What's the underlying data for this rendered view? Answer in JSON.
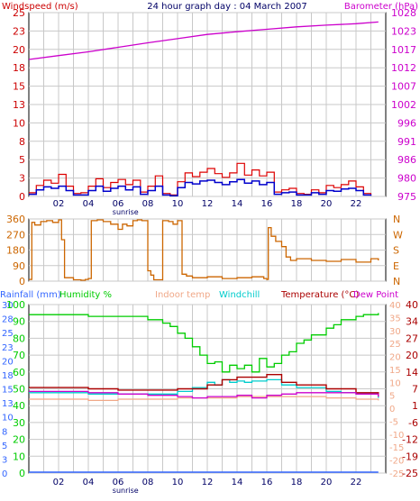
{
  "colors": {
    "wind_avg": "#0000cc",
    "wind_gust": "#dd0000",
    "barometer": "#cc00cc",
    "direction": "#cc6600",
    "rainfall": "#3366ff",
    "humidity": "#00cc00",
    "indoor_temp": "#f0a888",
    "windchill": "#00cccc",
    "temperature": "#aa0000",
    "dew_point": "#cc00cc",
    "grid": "#c8c8c8"
  },
  "chart_data": [
    {
      "type": "line",
      "title": "24 hour graph day : 04 March 2007",
      "left_axis_label": "Windspeed (m/s)",
      "right_axis_label": "Barometer (hPa)",
      "left_ticks": [
        "0",
        "3",
        "5",
        "8",
        "10",
        "13",
        "15",
        "18",
        "20",
        "23",
        "25"
      ],
      "right_ticks": [
        "975",
        "980",
        "986",
        "991",
        "996",
        "1002",
        "1007",
        "1012",
        "1017",
        "1023",
        "1028"
      ],
      "ylim_left": [
        0,
        25
      ],
      "ylim_right": [
        975,
        1028
      ],
      "x_ticks": [
        "02",
        "04",
        "06",
        "08",
        "10",
        "12",
        "14",
        "16",
        "18",
        "20",
        "22"
      ],
      "x_annotation": "sunrise",
      "series": [
        {
          "name": "Barometer",
          "axis": "right",
          "x": [
            0,
            2,
            4,
            6,
            8,
            10,
            12,
            14,
            16,
            18,
            20,
            22,
            23.5
          ],
          "y": [
            1014.5,
            1015.6,
            1016.7,
            1018,
            1019.3,
            1020.5,
            1021.7,
            1022.5,
            1023.2,
            1023.9,
            1024.4,
            1024.8,
            1025.3
          ]
        },
        {
          "name": "Windspeed gust",
          "axis": "left",
          "x": [
            0,
            0.5,
            1,
            1.5,
            2,
            2.5,
            3,
            3.5,
            4,
            4.5,
            5,
            5.5,
            6,
            6.5,
            7,
            7.5,
            8,
            8.5,
            9,
            9.5,
            10,
            10.5,
            11,
            11.5,
            12,
            12.5,
            13,
            13.5,
            14,
            14.5,
            15,
            15.5,
            16,
            16.5,
            17,
            17.5,
            18,
            18.5,
            19,
            19.5,
            20,
            20.5,
            21,
            21.5,
            22,
            22.5,
            23
          ],
          "y": [
            0.5,
            1.5,
            2.2,
            1.8,
            3,
            1.4,
            0.4,
            0.5,
            1.4,
            2.4,
            1.2,
            1.9,
            2.3,
            1.6,
            2.2,
            0.6,
            1.4,
            2.8,
            0.4,
            0.2,
            2,
            3.2,
            2.7,
            3.3,
            3.8,
            3.1,
            2.6,
            3.2,
            4.5,
            2.9,
            3.6,
            2.8,
            3.3,
            0.6,
            0.9,
            1.1,
            0.4,
            0.3,
            0.9,
            0.5,
            1.5,
            1.2,
            1.6,
            2.1,
            1.3,
            0.4,
            0.3
          ]
        },
        {
          "name": "Windspeed average",
          "axis": "left",
          "x": [
            0,
            0.5,
            1,
            1.5,
            2,
            2.5,
            3,
            3.5,
            4,
            4.5,
            5,
            5.5,
            6,
            6.5,
            7,
            7.5,
            8,
            8.5,
            9,
            9.5,
            10,
            10.5,
            11,
            11.5,
            12,
            12.5,
            13,
            13.5,
            14,
            14.5,
            15,
            15.5,
            16,
            16.5,
            17,
            17.5,
            18,
            18.5,
            19,
            19.5,
            20,
            20.5,
            21,
            21.5,
            22,
            22.5,
            23
          ],
          "y": [
            0.3,
            0.9,
            1.3,
            1.1,
            1.4,
            0.8,
            0.2,
            0.2,
            0.8,
            1.4,
            0.7,
            1.1,
            1.4,
            0.9,
            1.3,
            0.3,
            0.8,
            1.4,
            0.2,
            0.1,
            1.2,
            1.9,
            1.7,
            2.1,
            2.2,
            1.9,
            1.6,
            2,
            2.3,
            1.8,
            2.1,
            1.6,
            1.9,
            0.3,
            0.5,
            0.6,
            0.2,
            0.2,
            0.5,
            0.3,
            0.8,
            0.7,
            1,
            1.1,
            0.8,
            0.2,
            0.1
          ]
        }
      ]
    },
    {
      "type": "line",
      "title": "",
      "left_ticks": [
        "0",
        "90",
        "180",
        "270",
        "360"
      ],
      "right_ticks": [
        "N",
        "E",
        "S",
        "W",
        "N"
      ],
      "ylim_left": [
        0,
        360
      ],
      "series": [
        {
          "name": "Wind direction",
          "x": [
            0,
            0.2,
            0.4,
            0.8,
            1.2,
            1.6,
            2,
            2.2,
            2.4,
            3,
            3.5,
            3.8,
            4,
            4.2,
            4.6,
            5,
            5.5,
            6,
            6.3,
            6.6,
            7,
            7.3,
            7.6,
            8,
            8.2,
            8.4,
            9,
            9.4,
            9.7,
            10,
            10.3,
            10.6,
            11,
            12,
            13,
            14,
            15,
            15.8,
            16,
            16.1,
            16.3,
            16.6,
            17,
            17.3,
            17.6,
            18,
            19,
            20,
            21,
            22,
            23,
            23.5
          ],
          "y": [
            10,
            340,
            325,
            345,
            350,
            340,
            355,
            240,
            20,
            8,
            5,
            10,
            15,
            350,
            355,
            345,
            330,
            300,
            330,
            320,
            350,
            355,
            350,
            60,
            35,
            8,
            350,
            345,
            330,
            350,
            40,
            30,
            20,
            25,
            15,
            20,
            25,
            15,
            10,
            310,
            260,
            230,
            200,
            140,
            120,
            130,
            120,
            115,
            125,
            110,
            130,
            120
          ]
        }
      ]
    },
    {
      "type": "line",
      "title": "",
      "labels": [
        "Rainfall (mm)",
        "Humidity %",
        "Indoor temp",
        "Windchill",
        "Temperature (°C)",
        "Dew Point"
      ],
      "ticks_rain": [
        "0",
        "3",
        "5",
        "8",
        "10",
        "13",
        "15",
        "18",
        "20",
        "23",
        "25",
        "28",
        "30"
      ],
      "ticks_humidity": [
        "0",
        "10",
        "20",
        "30",
        "40",
        "50",
        "60",
        "70",
        "80",
        "90",
        "100"
      ],
      "ticks_temp_left": [
        "-25",
        "-20",
        "-15",
        "-10",
        "-5",
        "0",
        "5",
        "10",
        "15",
        "20",
        "25",
        "30",
        "35",
        "40"
      ],
      "ticks_temp_right": [
        "-25",
        "-19",
        "-12",
        "-6",
        "1",
        "7",
        "14",
        "20",
        "27",
        "34",
        "40"
      ],
      "x_ticks": [
        "02",
        "04",
        "06",
        "08",
        "10",
        "12",
        "14",
        "16",
        "18",
        "20",
        "22"
      ],
      "x_annotation": "sunrise",
      "series": [
        {
          "name": "Humidity",
          "x": [
            0,
            3,
            4,
            6,
            8,
            9,
            9.5,
            10,
            10.5,
            11,
            11.5,
            12,
            12.5,
            13,
            13.5,
            14,
            14.5,
            15,
            15.5,
            16,
            16.5,
            17,
            17.5,
            18,
            18.5,
            19,
            20,
            20.5,
            21,
            22,
            22.5,
            23.5
          ],
          "y": [
            94,
            94,
            93,
            93,
            91,
            89,
            87,
            83,
            80,
            75,
            70,
            65,
            66,
            60,
            64,
            62,
            64,
            60,
            68,
            63,
            65,
            70,
            72,
            77,
            79,
            82,
            86,
            88,
            91,
            93,
            94,
            95
          ]
        },
        {
          "name": "Temperature",
          "x": [
            0,
            2,
            4,
            6,
            8,
            10,
            12,
            13,
            14,
            15,
            16,
            17,
            18,
            20,
            22,
            23.5
          ],
          "y": [
            8,
            8,
            7.5,
            7,
            7,
            7.5,
            9,
            11,
            12,
            12,
            13,
            10,
            9,
            7.5,
            6,
            4.5
          ]
        },
        {
          "name": "Windchill",
          "x": [
            0,
            2,
            4,
            6,
            8,
            10,
            11,
            12,
            12.5,
            13,
            13.5,
            14,
            14.5,
            15,
            16,
            17,
            18,
            20,
            21,
            22,
            23.5
          ],
          "y": [
            6,
            6,
            5.5,
            5.5,
            5.5,
            6.5,
            8,
            10,
            9,
            11,
            10,
            10.5,
            10,
            10.5,
            11,
            9,
            8,
            6.5,
            6,
            5.5,
            4
          ]
        },
        {
          "name": "Dew Point",
          "x": [
            0,
            2,
            4,
            6,
            8,
            10,
            11,
            12,
            13,
            14,
            15,
            16,
            17,
            18,
            19,
            20,
            21,
            22,
            23.5
          ],
          "y": [
            6.5,
            6.5,
            6,
            5.5,
            5,
            4.5,
            4,
            4.5,
            4.5,
            5,
            4,
            5,
            5.5,
            6,
            6,
            6,
            6,
            5.5,
            4.5
          ]
        },
        {
          "name": "Indoor temp",
          "x": [
            0,
            2,
            4,
            6,
            8,
            10,
            12,
            14,
            16,
            18,
            20,
            22,
            23.5
          ],
          "y": [
            3.5,
            3.5,
            3,
            3.5,
            3.5,
            4,
            4,
            4.5,
            4.5,
            4.5,
            4,
            3.5,
            3
          ]
        },
        {
          "name": "Rainfall",
          "x": [
            0,
            23.5
          ],
          "y": [
            0,
            0
          ]
        }
      ]
    }
  ]
}
